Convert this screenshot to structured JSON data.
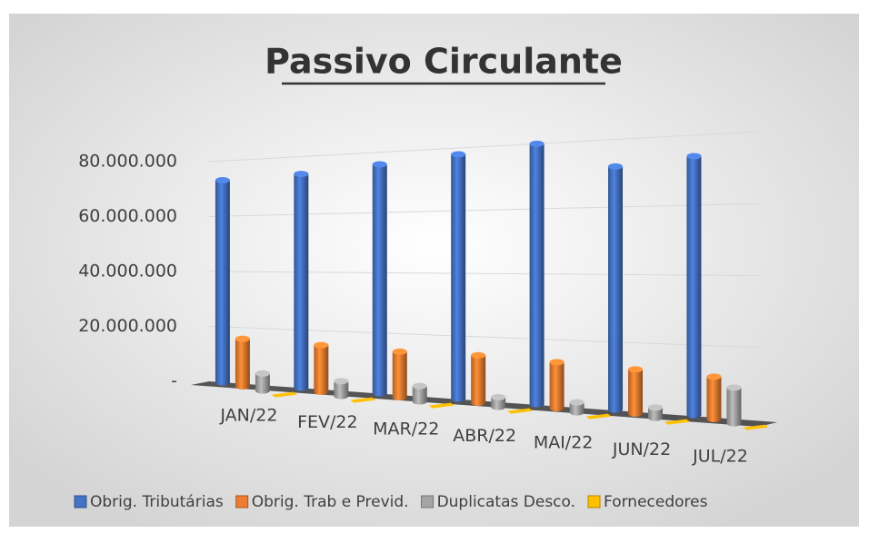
{
  "chart_data": {
    "type": "bar3d",
    "title": "Passivo Circulante",
    "categories": [
      "JAN/22",
      "FEV/22",
      "MAR/22",
      "ABR/22",
      "MAI/22",
      "JUN/22",
      "JUL/22"
    ],
    "series": [
      {
        "name": "Obrig. Tributárias",
        "color": "#4472c4",
        "values": [
          73000000,
          74000000,
          76000000,
          78000000,
          80000000,
          72000000,
          74000000
        ]
      },
      {
        "name": "Obrig. Trab e Previd.",
        "color": "#ed7d31",
        "values": [
          17000000,
          16000000,
          15000000,
          15000000,
          14000000,
          13000000,
          12000000
        ]
      },
      {
        "name": "Duplicatas Desco.",
        "color": "#a5a5a5",
        "values": [
          6000000,
          5000000,
          5000000,
          3000000,
          3000000,
          3000000,
          10000000
        ]
      },
      {
        "name": "Fornecedores",
        "color": "#ffc000",
        "values": [
          500000,
          500000,
          500000,
          500000,
          500000,
          500000,
          500000
        ]
      }
    ],
    "ylim": [
      0,
      80000000
    ],
    "yticks": [
      {
        "value": 0,
        "label": "-"
      },
      {
        "value": 20000000,
        "label": "20.000.000"
      },
      {
        "value": 40000000,
        "label": "40.000.000"
      },
      {
        "value": 60000000,
        "label": "60.000.000"
      },
      {
        "value": 80000000,
        "label": "80.000.000"
      }
    ],
    "grid": true,
    "legend": "bottom"
  }
}
